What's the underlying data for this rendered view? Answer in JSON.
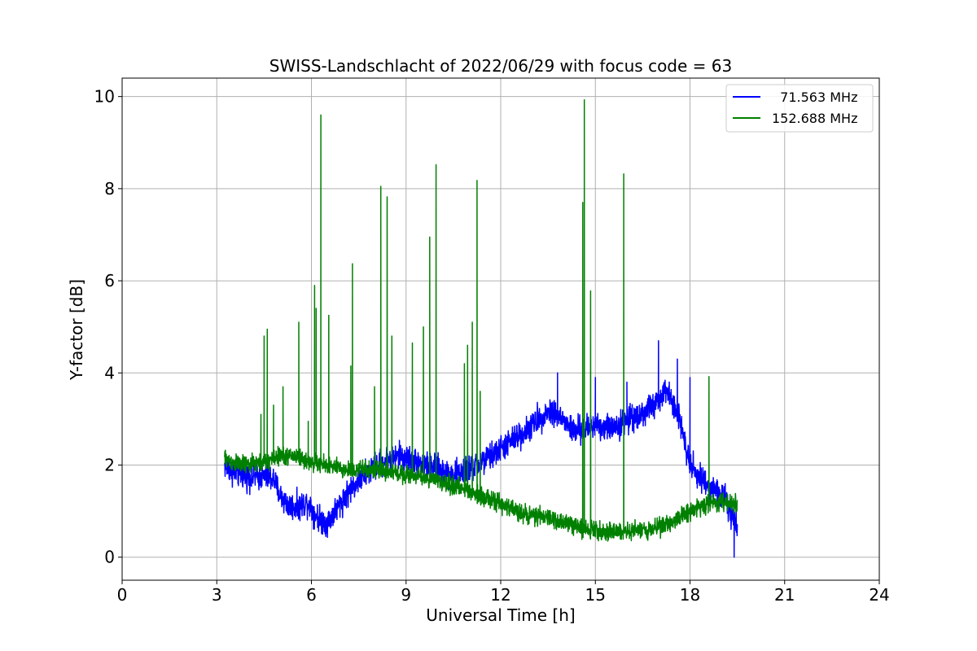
{
  "chart_data": {
    "type": "line",
    "title": "SWISS-Landschlacht of 2022/06/29 with focus code = 63",
    "xlabel": "Universal Time [h]",
    "ylabel": "Y-factor [dB]",
    "xlim": [
      0,
      24
    ],
    "ylim": [
      -0.5,
      10.4
    ],
    "xticks": [
      0,
      3,
      6,
      9,
      12,
      15,
      18,
      21,
      24
    ],
    "xtick_labels": [
      "0",
      "3",
      "6",
      "9",
      "12",
      "15",
      "18",
      "21",
      "24"
    ],
    "yticks": [
      0,
      2,
      4,
      6,
      8,
      10
    ],
    "ytick_labels": [
      "0",
      "2",
      "4",
      "6",
      "8",
      "10"
    ],
    "grid": true,
    "legend_position": "top-right",
    "series": [
      {
        "name": "  71.563 MHz",
        "color": "#0000ff",
        "baseline": [
          [
            3.25,
            2.0
          ],
          [
            3.5,
            1.85
          ],
          [
            4.0,
            1.75
          ],
          [
            4.5,
            1.75
          ],
          [
            4.8,
            1.7
          ],
          [
            5.0,
            1.35
          ],
          [
            5.3,
            1.1
          ],
          [
            5.6,
            1.1
          ],
          [
            5.9,
            1.2
          ],
          [
            6.1,
            0.95
          ],
          [
            6.3,
            0.8
          ],
          [
            6.5,
            0.75
          ],
          [
            6.8,
            1.05
          ],
          [
            7.1,
            1.35
          ],
          [
            7.4,
            1.6
          ],
          [
            7.8,
            1.85
          ],
          [
            8.1,
            2.0
          ],
          [
            8.4,
            2.1
          ],
          [
            8.8,
            2.2
          ],
          [
            9.2,
            2.1
          ],
          [
            9.6,
            2.0
          ],
          [
            10.0,
            1.9
          ],
          [
            10.5,
            1.8
          ],
          [
            11.0,
            1.9
          ],
          [
            11.5,
            2.1
          ],
          [
            12.0,
            2.35
          ],
          [
            12.4,
            2.55
          ],
          [
            12.8,
            2.75
          ],
          [
            13.2,
            3.0
          ],
          [
            13.6,
            3.2
          ],
          [
            14.0,
            2.95
          ],
          [
            14.3,
            2.75
          ],
          [
            14.6,
            2.75
          ],
          [
            15.0,
            2.9
          ],
          [
            15.4,
            2.8
          ],
          [
            15.8,
            2.9
          ],
          [
            16.2,
            3.05
          ],
          [
            16.6,
            3.15
          ],
          [
            17.0,
            3.4
          ],
          [
            17.3,
            3.6
          ],
          [
            17.6,
            3.2
          ],
          [
            17.9,
            2.3
          ],
          [
            18.2,
            1.8
          ],
          [
            18.5,
            1.6
          ],
          [
            18.8,
            1.45
          ],
          [
            19.1,
            1.3
          ],
          [
            19.3,
            0.9
          ],
          [
            19.5,
            0.6
          ]
        ],
        "noise": 0.18,
        "spikes": [
          [
            13.8,
            4.0
          ],
          [
            15.0,
            3.9
          ],
          [
            16.0,
            3.8
          ],
          [
            17.0,
            4.7
          ],
          [
            17.6,
            4.3
          ],
          [
            18.0,
            3.9
          ],
          [
            19.4,
            0.0
          ]
        ]
      },
      {
        "name": "152.688 MHz",
        "color": "#008000",
        "baseline": [
          [
            3.25,
            2.15
          ],
          [
            3.5,
            2.05
          ],
          [
            4.0,
            2.0
          ],
          [
            4.5,
            2.05
          ],
          [
            5.0,
            2.2
          ],
          [
            5.5,
            2.2
          ],
          [
            6.0,
            2.05
          ],
          [
            6.5,
            2.0
          ],
          [
            7.0,
            1.9
          ],
          [
            7.5,
            1.9
          ],
          [
            8.0,
            1.9
          ],
          [
            8.5,
            1.85
          ],
          [
            9.0,
            1.8
          ],
          [
            9.5,
            1.75
          ],
          [
            10.0,
            1.65
          ],
          [
            10.5,
            1.55
          ],
          [
            11.0,
            1.45
          ],
          [
            11.5,
            1.3
          ],
          [
            12.0,
            1.15
          ],
          [
            12.5,
            1.0
          ],
          [
            13.0,
            0.9
          ],
          [
            13.5,
            0.85
          ],
          [
            14.0,
            0.75
          ],
          [
            14.5,
            0.65
          ],
          [
            15.0,
            0.6
          ],
          [
            15.5,
            0.55
          ],
          [
            16.0,
            0.55
          ],
          [
            16.5,
            0.6
          ],
          [
            17.0,
            0.65
          ],
          [
            17.5,
            0.8
          ],
          [
            18.0,
            1.0
          ],
          [
            18.5,
            1.15
          ],
          [
            19.0,
            1.2
          ],
          [
            19.5,
            1.15
          ]
        ],
        "noise": 0.12,
        "spikes": [
          [
            4.4,
            3.1
          ],
          [
            4.5,
            4.8
          ],
          [
            4.6,
            4.95
          ],
          [
            4.8,
            3.3
          ],
          [
            5.1,
            3.7
          ],
          [
            5.6,
            5.1
          ],
          [
            5.9,
            2.95
          ],
          [
            6.1,
            5.9
          ],
          [
            6.15,
            5.4
          ],
          [
            6.3,
            9.6
          ],
          [
            6.55,
            5.25
          ],
          [
            7.25,
            4.15
          ],
          [
            7.3,
            6.37
          ],
          [
            8.0,
            3.7
          ],
          [
            8.2,
            8.05
          ],
          [
            8.4,
            7.82
          ],
          [
            8.55,
            4.8
          ],
          [
            9.2,
            4.65
          ],
          [
            9.55,
            5.0
          ],
          [
            9.75,
            6.95
          ],
          [
            9.95,
            8.52
          ],
          [
            10.85,
            4.2
          ],
          [
            10.95,
            4.6
          ],
          [
            11.1,
            5.1
          ],
          [
            11.25,
            8.18
          ],
          [
            11.35,
            3.6
          ],
          [
            14.6,
            7.7
          ],
          [
            14.65,
            9.93
          ],
          [
            14.85,
            5.78
          ],
          [
            15.9,
            8.32
          ],
          [
            18.6,
            3.92
          ]
        ]
      }
    ]
  }
}
